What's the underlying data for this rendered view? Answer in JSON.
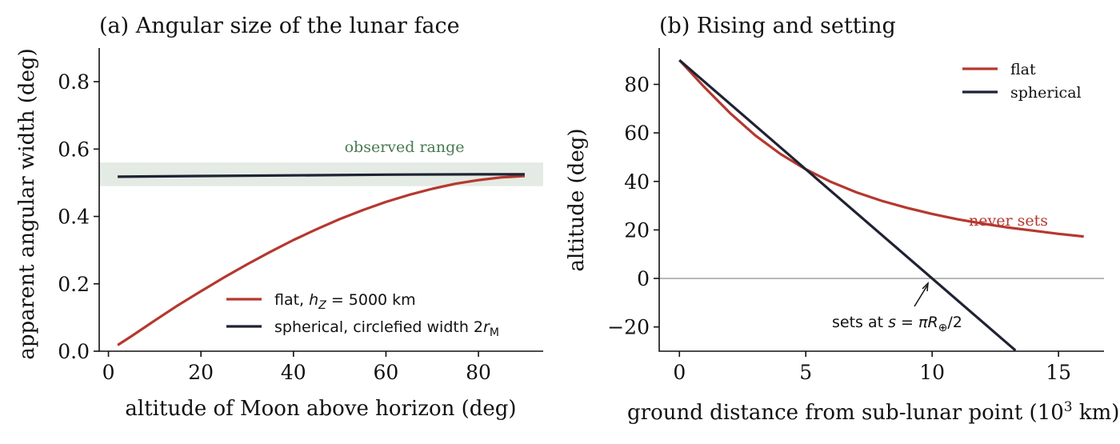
{
  "chart_data": [
    {
      "type": "line",
      "title": "(a) Angular size of the lunar face",
      "xlabel": "altitude of Moon above horizon (deg)",
      "ylabel": "apparent angular width (deg)",
      "xlim": [
        -2,
        94
      ],
      "ylim": [
        0,
        0.9
      ],
      "xticks": [
        "0",
        "20",
        "40",
        "60",
        "80"
      ],
      "yticks": [
        "0.0",
        "0.2",
        "0.4",
        "0.6",
        "0.8"
      ],
      "grid": false,
      "legend_position": "lower-right",
      "band": {
        "label": "observed range",
        "y_range": [
          0.49,
          0.56
        ],
        "color": "#e3ebe4",
        "label_color": "#4a7a52"
      },
      "series": [
        {
          "name": "flat, h_Z = 5000 km",
          "color": "#b5382f",
          "x": [
            2,
            5,
            10,
            15,
            20,
            25,
            30,
            35,
            40,
            45,
            50,
            55,
            60,
            65,
            70,
            75,
            80,
            85,
            90
          ],
          "y": [
            0.018,
            0.045,
            0.091,
            0.136,
            0.178,
            0.219,
            0.258,
            0.295,
            0.33,
            0.362,
            0.392,
            0.419,
            0.443,
            0.464,
            0.482,
            0.497,
            0.508,
            0.516,
            0.52
          ]
        },
        {
          "name": "spherical, circlefied width 2r_M",
          "color": "#1f2233",
          "x": [
            2,
            20,
            40,
            60,
            80,
            90
          ],
          "y": [
            0.518,
            0.52,
            0.522,
            0.524,
            0.525,
            0.525
          ]
        }
      ]
    },
    {
      "type": "line",
      "title": "(b) Rising and setting",
      "xlabel": "ground distance from sub-lunar point (10³ km)",
      "ylabel": "altitude (deg)",
      "xlim": [
        -0.8,
        16.8
      ],
      "ylim": [
        -30,
        95
      ],
      "xticks": [
        "0",
        "5",
        "10",
        "15"
      ],
      "yticks": [
        "−20",
        "0",
        "20",
        "40",
        "60",
        "80"
      ],
      "grid": false,
      "legend_position": "top-right",
      "annotations": [
        {
          "text": "never sets",
          "color": "#b5382f"
        },
        {
          "text": "sets at s = πR⊕/2",
          "color": "#111111"
        }
      ],
      "series": [
        {
          "name": "flat",
          "color": "#b5382f",
          "x": [
            0,
            1,
            2,
            3,
            4,
            5,
            6,
            7,
            8,
            9,
            10,
            11,
            12,
            13,
            14,
            15,
            16
          ],
          "y": [
            90,
            78.7,
            68.2,
            59.0,
            51.3,
            45.0,
            39.8,
            35.5,
            32.0,
            29.1,
            26.6,
            24.4,
            22.6,
            21.0,
            19.7,
            18.4,
            17.3
          ]
        },
        {
          "name": "spherical",
          "color": "#1f2233",
          "x": [
            0,
            13.3
          ],
          "y": [
            90,
            -29.7
          ]
        }
      ]
    }
  ]
}
